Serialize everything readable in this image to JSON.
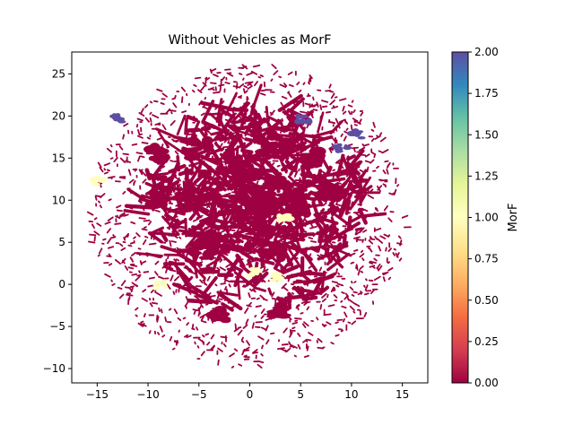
{
  "chart_data": {
    "type": "scatter",
    "title": "Without Vehicles as MorF",
    "xlabel": "",
    "ylabel": "",
    "xlim": [
      -17.5,
      17.5
    ],
    "ylim": [
      -11.7,
      27.6
    ],
    "xticks": [
      -15,
      -10,
      -5,
      0,
      5,
      10,
      15
    ],
    "yticks": [
      -10,
      -5,
      0,
      5,
      10,
      15,
      20,
      25
    ],
    "grid": false,
    "colormap": "Spectral",
    "colorbar": {
      "label": "MorF",
      "range": [
        0.0,
        2.0
      ],
      "ticks": [
        "0.00",
        "0.25",
        "0.50",
        "0.75",
        "1.00",
        "1.25",
        "1.50",
        "1.75",
        "2.00"
      ]
    },
    "series": [
      {
        "value": 0,
        "color": "#9e0142",
        "approx_extent": {
          "x": [
            -16,
            16
          ],
          "y": [
            -10,
            26
          ]
        }
      },
      {
        "value": 1,
        "color": "#ffffbf",
        "clusters": [
          {
            "x": 0.6,
            "y": 1.4
          },
          {
            "x": 2.8,
            "y": 0.9
          },
          {
            "x": -8.7,
            "y": -0.1
          },
          {
            "x": -14.8,
            "y": 12.2
          },
          {
            "x": 3.5,
            "y": 8.0
          }
        ]
      },
      {
        "value": 2,
        "color": "#5e4fa2",
        "clusters": [
          {
            "x": 5.3,
            "y": 19.6
          },
          {
            "x": 10.4,
            "y": 17.8
          },
          {
            "x": 9.0,
            "y": 16.2
          },
          {
            "x": -13.0,
            "y": 19.7
          }
        ]
      }
    ]
  }
}
